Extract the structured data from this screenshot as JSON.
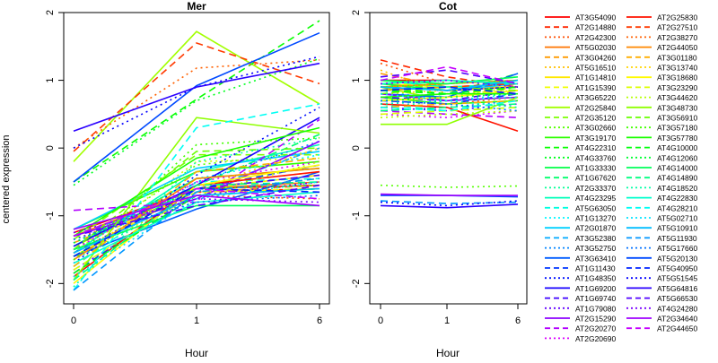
{
  "figure": {
    "ylabel": "centered expression",
    "background": "#ffffff"
  },
  "chart_data": [
    {
      "type": "line",
      "title": "Mer",
      "xlabel": "Hour",
      "ylabel": "centered expression",
      "x": [
        "0",
        "1",
        "6"
      ],
      "xticks": [
        "0",
        "1",
        "6"
      ],
      "yticks": [
        "-2",
        "-1",
        "0",
        "1",
        "2"
      ],
      "ylim": [
        -2.3,
        2.0
      ],
      "grid": false,
      "series": [
        {
          "name": "AT3G54090",
          "values": [
            -1.25,
            -0.6,
            -0.55
          ]
        },
        {
          "name": "AT2G14880",
          "values": [
            -1.3,
            -0.65,
            -0.6
          ]
        },
        {
          "name": "AT2G42300",
          "values": [
            -1.35,
            -0.7,
            -0.75
          ]
        },
        {
          "name": "AT5G02030",
          "values": [
            -1.3,
            -0.6,
            -0.5
          ]
        },
        {
          "name": "AT3G04260",
          "values": [
            -1.4,
            -0.65,
            -0.55
          ]
        },
        {
          "name": "AT5G16510",
          "values": [
            -1.5,
            -0.55,
            -0.35
          ]
        },
        {
          "name": "AT1G14810",
          "values": [
            -1.6,
            -0.6,
            -0.4
          ]
        },
        {
          "name": "AT1G15390",
          "values": [
            -1.45,
            -0.65,
            -0.6
          ]
        },
        {
          "name": "AT3G65220",
          "values": [
            -1.55,
            -0.2,
            -0.15
          ]
        },
        {
          "name": "AT2G25840",
          "values": [
            -0.2,
            1.72,
            0.65
          ]
        },
        {
          "name": "AT2G35120",
          "values": [
            -1.35,
            -0.1,
            -0.1
          ]
        },
        {
          "name": "AT3G02660",
          "values": [
            -1.5,
            -0.25,
            -0.05
          ]
        },
        {
          "name": "AT3G19170",
          "values": [
            -1.2,
            -0.35,
            -0.2
          ]
        },
        {
          "name": "AT4G22310",
          "values": [
            -0.5,
            0.72,
            1.88
          ]
        },
        {
          "name": "AT4G33760",
          "values": [
            -0.55,
            0.7,
            1.32
          ]
        },
        {
          "name": "AT1G33330",
          "values": [
            -1.45,
            -0.45,
            -0.3
          ]
        },
        {
          "name": "AT1G67620",
          "values": [
            -1.6,
            -0.55,
            0.2
          ]
        },
        {
          "name": "AT2G33370",
          "values": [
            -1.65,
            -0.7,
            -0.6
          ]
        },
        {
          "name": "AT4G23295",
          "values": [
            -1.55,
            -0.35,
            0.05
          ]
        },
        {
          "name": "AT5G63050",
          "values": [
            -1.75,
            -0.5,
            -0.45
          ]
        },
        {
          "name": "AT1G13270",
          "values": [
            -1.45,
            -0.45,
            -0.1
          ]
        },
        {
          "name": "AT2G01870",
          "values": [
            -1.2,
            -0.3,
            -0.05
          ]
        },
        {
          "name": "AT3G52380",
          "values": [
            -1.3,
            -0.65,
            0.0
          ]
        },
        {
          "name": "AT3G52750",
          "values": [
            -1.4,
            -0.5,
            0.1
          ]
        },
        {
          "name": "AT3G63410",
          "values": [
            -1.6,
            -0.9,
            -0.35
          ]
        },
        {
          "name": "AT1G11430",
          "values": [
            -1.85,
            -0.6,
            -0.25
          ]
        },
        {
          "name": "AT1G48350",
          "values": [
            -1.7,
            -0.4,
            0.6
          ]
        },
        {
          "name": "AT1G69200",
          "values": [
            -1.45,
            -0.55,
            0.45
          ]
        },
        {
          "name": "AT1G69740",
          "values": [
            -1.55,
            -0.6,
            -0.4
          ]
        },
        {
          "name": "AT1G79080",
          "values": [
            -1.8,
            -0.7,
            -0.5
          ]
        },
        {
          "name": "AT2G15290",
          "values": [
            -1.3,
            -0.75,
            0.1
          ]
        },
        {
          "name": "AT2G20270",
          "values": [
            -0.92,
            -0.8,
            0.42
          ]
        },
        {
          "name": "AT2G20690",
          "values": [
            -1.5,
            -0.5,
            -0.2
          ]
        },
        {
          "name": "AT2G25830",
          "values": [
            -1.9,
            -0.55,
            -0.35
          ]
        },
        {
          "name": "AT2G27510",
          "values": [
            -0.05,
            1.55,
            0.95
          ]
        },
        {
          "name": "AT2G38270",
          "values": [
            0.0,
            1.18,
            1.3
          ]
        },
        {
          "name": "AT2G44050",
          "values": [
            -1.65,
            -0.45,
            -0.3
          ]
        },
        {
          "name": "AT3G01180",
          "values": [
            -1.75,
            -0.35,
            -0.15
          ]
        },
        {
          "name": "AT3G13740",
          "values": [
            -1.55,
            -0.6,
            0.0
          ]
        },
        {
          "name": "AT3G18680",
          "values": [
            -2.0,
            -0.55,
            -0.25
          ]
        },
        {
          "name": "AT3G23290",
          "values": [
            -1.8,
            -0.65,
            -0.45
          ]
        },
        {
          "name": "AT3G44620",
          "values": [
            -1.6,
            -0.7,
            -0.2
          ]
        },
        {
          "name": "AT3G48730",
          "values": [
            -1.95,
            0.45,
            0.22
          ]
        },
        {
          "name": "AT3G56910",
          "values": [
            -1.5,
            -0.05,
            0.0
          ]
        },
        {
          "name": "AT3G57180",
          "values": [
            -1.65,
            0.05,
            0.15
          ]
        },
        {
          "name": "AT3G57780",
          "values": [
            -1.3,
            -0.15,
            0.3
          ]
        },
        {
          "name": "AT4G10000",
          "values": [
            -1.85,
            -0.7,
            -0.6
          ]
        },
        {
          "name": "AT4G12060",
          "values": [
            -1.4,
            -0.6,
            -0.55
          ]
        },
        {
          "name": "AT4G14000",
          "values": [
            -1.5,
            -0.85,
            -0.85
          ]
        },
        {
          "name": "AT4G14890",
          "values": [
            -1.95,
            -0.55,
            -0.5
          ]
        },
        {
          "name": "AT4G18520",
          "values": [
            -2.05,
            -0.2,
            0.15
          ]
        },
        {
          "name": "AT4G22830",
          "values": [
            -1.7,
            -0.8,
            -0.65
          ]
        },
        {
          "name": "AT4G28210",
          "values": [
            -2.1,
            0.3,
            0.65
          ]
        },
        {
          "name": "AT5G02710",
          "values": [
            -1.9,
            -0.75,
            -0.5
          ]
        },
        {
          "name": "AT5G10910",
          "values": [
            -1.55,
            -0.7,
            -0.6
          ]
        },
        {
          "name": "AT5G11930",
          "values": [
            -2.1,
            -0.65,
            -0.45
          ]
        },
        {
          "name": "AT5G17660",
          "values": [
            -1.35,
            -0.8,
            -0.7
          ]
        },
        {
          "name": "AT5G20130",
          "values": [
            -0.5,
            0.92,
            1.7
          ]
        },
        {
          "name": "AT5G40950",
          "values": [
            -1.6,
            -0.6,
            -0.65
          ]
        },
        {
          "name": "AT5G51545",
          "values": [
            0.0,
            0.9,
            1.35
          ]
        },
        {
          "name": "AT5G64816",
          "values": [
            0.25,
            0.9,
            1.25
          ]
        },
        {
          "name": "AT5G66530",
          "values": [
            -1.3,
            -0.85,
            -0.55
          ]
        },
        {
          "name": "AT4G24280",
          "values": [
            -1.25,
            -0.75,
            -0.8
          ]
        },
        {
          "name": "AT2G34640",
          "values": [
            -1.2,
            -0.7,
            -0.85
          ]
        },
        {
          "name": "AT2G44650",
          "values": [
            -1.3,
            -0.6,
            -0.75
          ]
        }
      ]
    },
    {
      "type": "line",
      "title": "Cot",
      "xlabel": "Hour",
      "x": [
        "0",
        "1",
        "6"
      ],
      "xticks": [
        "0",
        "1",
        "6"
      ],
      "yticks": [
        "-2",
        "-1",
        "0",
        "1",
        "2"
      ],
      "ylim": [
        -2.3,
        2.0
      ],
      "grid": false,
      "series": [
        {
          "name": "AT3G54090",
          "values": [
            1.0,
            1.0,
            0.95
          ]
        },
        {
          "name": "AT2G14880",
          "values": [
            1.3,
            1.05,
            0.9
          ]
        },
        {
          "name": "AT2G42300",
          "values": [
            1.25,
            0.95,
            1.0
          ]
        },
        {
          "name": "AT5G02030",
          "values": [
            0.85,
            0.9,
            0.95
          ]
        },
        {
          "name": "AT3G04260",
          "values": [
            1.1,
            0.9,
            0.8
          ]
        },
        {
          "name": "AT5G16510",
          "values": [
            1.15,
            0.8,
            0.85
          ]
        },
        {
          "name": "AT1G14810",
          "values": [
            0.95,
            0.9,
            0.9
          ]
        },
        {
          "name": "AT1G15390",
          "values": [
            1.0,
            0.85,
            0.8
          ]
        },
        {
          "name": "AT3G65220",
          "values": [
            0.8,
            0.75,
            0.9
          ]
        },
        {
          "name": "AT2G25840",
          "values": [
            0.9,
            0.7,
            0.75
          ]
        },
        {
          "name": "AT2G35120",
          "values": [
            0.85,
            0.95,
            1.05
          ]
        },
        {
          "name": "AT3G02660",
          "values": [
            -0.55,
            -0.58,
            -0.56
          ]
        },
        {
          "name": "AT3G19170",
          "values": [
            0.75,
            0.65,
            0.7
          ]
        },
        {
          "name": "AT4G22310",
          "values": [
            0.9,
            0.8,
            1.1
          ]
        },
        {
          "name": "AT4G33760",
          "values": [
            0.8,
            0.75,
            0.85
          ]
        },
        {
          "name": "AT1G33330",
          "values": [
            0.95,
            0.85,
            1.0
          ]
        },
        {
          "name": "AT1G67620",
          "values": [
            0.7,
            0.8,
            0.9
          ]
        },
        {
          "name": "AT2G33370",
          "values": [
            0.6,
            0.7,
            0.75
          ]
        },
        {
          "name": "AT4G23295",
          "values": [
            1.0,
            0.9,
            0.95
          ]
        },
        {
          "name": "AT5G63050",
          "values": [
            0.65,
            0.55,
            0.6
          ]
        },
        {
          "name": "AT1G13270",
          "values": [
            0.85,
            0.7,
            0.8
          ]
        },
        {
          "name": "AT2G01870",
          "values": [
            0.9,
            0.85,
            0.95
          ]
        },
        {
          "name": "AT3G52380",
          "values": [
            0.75,
            0.8,
            1.0
          ]
        },
        {
          "name": "AT3G52750",
          "values": [
            0.55,
            0.6,
            0.7
          ]
        },
        {
          "name": "AT3G63410",
          "values": [
            0.8,
            0.75,
            1.1
          ]
        },
        {
          "name": "AT1G11430",
          "values": [
            0.7,
            0.65,
            0.8
          ]
        },
        {
          "name": "AT1G48350",
          "values": [
            0.65,
            0.7,
            0.75
          ]
        },
        {
          "name": "AT1G69200",
          "values": [
            0.9,
            0.85,
            0.9
          ]
        },
        {
          "name": "AT1G69740",
          "values": [
            0.75,
            0.7,
            0.85
          ]
        },
        {
          "name": "AT1G79080",
          "values": [
            0.6,
            0.55,
            0.65
          ]
        },
        {
          "name": "AT2G15290",
          "values": [
            0.8,
            0.7,
            0.75
          ]
        },
        {
          "name": "AT2G20270",
          "values": [
            0.55,
            0.5,
            0.45
          ]
        },
        {
          "name": "AT2G20690",
          "values": [
            0.5,
            0.45,
            0.55
          ]
        },
        {
          "name": "AT2G25830",
          "values": [
            0.65,
            0.6,
            0.25
          ]
        },
        {
          "name": "AT2G27510",
          "values": [
            0.85,
            0.9,
            0.95
          ]
        },
        {
          "name": "AT2G38270",
          "values": [
            0.7,
            0.65,
            0.75
          ]
        },
        {
          "name": "AT2G44050",
          "values": [
            0.9,
            0.95,
            1.0
          ]
        },
        {
          "name": "AT3G01180",
          "values": [
            0.6,
            0.65,
            0.7
          ]
        },
        {
          "name": "AT3G13740",
          "values": [
            0.8,
            0.85,
            0.9
          ]
        },
        {
          "name": "AT3G18680",
          "values": [
            0.7,
            0.75,
            0.85
          ]
        },
        {
          "name": "AT3G23290",
          "values": [
            0.5,
            0.55,
            0.6
          ]
        },
        {
          "name": "AT3G44620",
          "values": [
            0.45,
            0.5,
            0.55
          ]
        },
        {
          "name": "AT3G48730",
          "values": [
            0.35,
            0.35,
            0.75
          ]
        },
        {
          "name": "AT3G56910",
          "values": [
            0.8,
            0.9,
            0.85
          ]
        },
        {
          "name": "AT3G57180",
          "values": [
            0.9,
            0.95,
            1.0
          ]
        },
        {
          "name": "AT3G57780",
          "values": [
            0.75,
            0.8,
            0.8
          ]
        },
        {
          "name": "AT4G10000",
          "values": [
            0.85,
            0.8,
            0.9
          ]
        },
        {
          "name": "AT4G12060",
          "values": [
            0.7,
            0.75,
            0.8
          ]
        },
        {
          "name": "AT4G14000",
          "values": [
            1.0,
            0.95,
            1.05
          ]
        },
        {
          "name": "AT4G14890",
          "values": [
            0.55,
            0.6,
            0.65
          ]
        },
        {
          "name": "AT4G18520",
          "values": [
            0.65,
            0.7,
            0.6
          ]
        },
        {
          "name": "AT4G22830",
          "values": [
            0.95,
            1.0,
            0.95
          ]
        },
        {
          "name": "AT4G28210",
          "values": [
            0.6,
            0.55,
            0.7
          ]
        },
        {
          "name": "AT5G02710",
          "values": [
            0.8,
            0.7,
            0.75
          ]
        },
        {
          "name": "AT5G10910",
          "values": [
            0.9,
            0.85,
            1.0
          ]
        },
        {
          "name": "AT5G11930",
          "values": [
            -0.78,
            -0.82,
            -0.8
          ]
        },
        {
          "name": "AT5G17660",
          "values": [
            0.7,
            0.65,
            0.55
          ]
        },
        {
          "name": "AT5G20130",
          "values": [
            -0.7,
            -0.7,
            -0.72
          ]
        },
        {
          "name": "AT5G40950",
          "values": [
            0.85,
            0.9,
            0.8
          ]
        },
        {
          "name": "AT5G51545",
          "values": [
            -0.8,
            -0.85,
            -0.78
          ]
        },
        {
          "name": "AT5G64816",
          "values": [
            -0.85,
            -0.88,
            -0.83
          ]
        },
        {
          "name": "AT5G66530",
          "values": [
            1.05,
            1.15,
            0.95
          ]
        },
        {
          "name": "AT4G24280",
          "values": [
            0.95,
            1.0,
            0.9
          ]
        },
        {
          "name": "AT2G34640",
          "values": [
            -0.68,
            -0.7,
            -0.7
          ]
        },
        {
          "name": "AT2G44650",
          "values": [
            1.0,
            1.2,
            0.95
          ]
        }
      ]
    }
  ],
  "legend": {
    "placement": "right",
    "columns": 2,
    "rows_per_column": 33,
    "linetypes": [
      "solid",
      "dashed",
      "dotted"
    ]
  }
}
